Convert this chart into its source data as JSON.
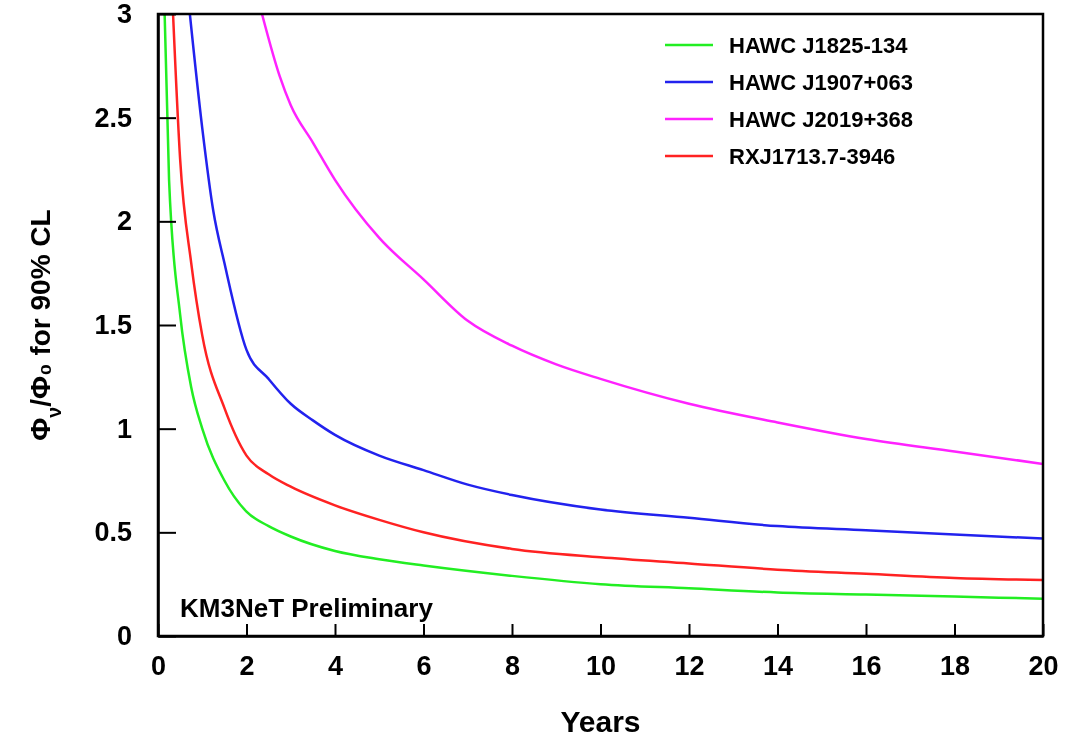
{
  "chart_data": {
    "type": "line",
    "xlabel": "Years",
    "ylabel": "Φ$_{ν}$/Φ₀ for 90% CL",
    "annotations": [
      "KM3NeT Preliminary"
    ],
    "xlim": [
      0,
      20
    ],
    "ylim": [
      0,
      3
    ],
    "xticks": [
      0,
      2,
      4,
      6,
      8,
      10,
      12,
      14,
      16,
      18,
      20
    ],
    "yticks": [
      0,
      0.5,
      1,
      1.5,
      2,
      2.5,
      3
    ],
    "grid": false,
    "legend": "top right",
    "line_style": "solid",
    "marker": "none",
    "series": [
      {
        "name": "HAWC J1825-134",
        "color": "#22ee22",
        "x": [
          0.15,
          0.25,
          0.5,
          0.75,
          1,
          1.5,
          2,
          2.5,
          3,
          4,
          5,
          6,
          8,
          10,
          12,
          14,
          16,
          18,
          20
        ],
        "values": [
          3.0,
          2.2,
          1.55,
          1.2,
          1.0,
          0.75,
          0.6,
          0.53,
          0.48,
          0.41,
          0.37,
          0.34,
          0.29,
          0.25,
          0.23,
          0.21,
          0.2,
          0.19,
          0.18
        ]
      },
      {
        "name": "HAWC J1907+063",
        "color": "#2222ee",
        "x": [
          0.72,
          1,
          1.25,
          1.5,
          2,
          2.5,
          3,
          3.5,
          4,
          5,
          6,
          7,
          8,
          10,
          12,
          14,
          16,
          18,
          20
        ],
        "values": [
          3.0,
          2.45,
          2.05,
          1.8,
          1.38,
          1.24,
          1.12,
          1.04,
          0.97,
          0.87,
          0.8,
          0.73,
          0.68,
          0.61,
          0.57,
          0.53,
          0.51,
          0.49,
          0.47
        ]
      },
      {
        "name": "HAWC J2019+368",
        "color": "#ff22ff",
        "x": [
          2.35,
          2.75,
          3,
          3.5,
          4,
          5,
          6,
          7,
          8,
          9,
          10,
          12,
          14,
          16,
          18,
          20
        ],
        "values": [
          3.0,
          2.7,
          2.56,
          2.38,
          2.2,
          1.92,
          1.72,
          1.52,
          1.4,
          1.31,
          1.24,
          1.12,
          1.03,
          0.95,
          0.89,
          0.83
        ]
      },
      {
        "name": "RXJ1713.7-3946",
        "color": "#ff2222",
        "x": [
          0.34,
          0.5,
          0.75,
          1,
          1.5,
          2,
          2.5,
          3,
          4,
          5,
          6,
          8,
          10,
          12,
          14,
          16,
          18,
          20
        ],
        "values": [
          3.0,
          2.3,
          1.8,
          1.45,
          1.1,
          0.87,
          0.78,
          0.72,
          0.63,
          0.56,
          0.5,
          0.42,
          0.38,
          0.35,
          0.32,
          0.3,
          0.28,
          0.27
        ]
      }
    ]
  }
}
